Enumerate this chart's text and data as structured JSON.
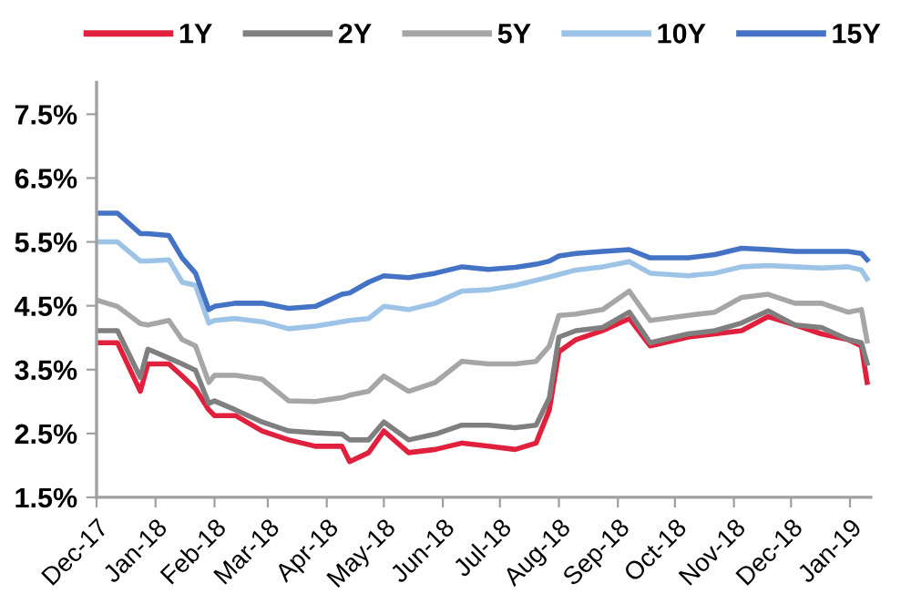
{
  "chart_data": {
    "type": "line",
    "x": [
      "2017-12-01",
      "2017-12-12",
      "2017-12-24",
      "2017-12-28",
      "2018-01-08",
      "2018-01-15",
      "2018-01-22",
      "2018-01-29",
      "2018-02-01",
      "2018-02-12",
      "2018-02-26",
      "2018-03-12",
      "2018-03-26",
      "2018-04-09",
      "2018-04-13",
      "2018-04-23",
      "2018-05-01",
      "2018-05-14",
      "2018-05-28",
      "2018-06-11",
      "2018-06-25",
      "2018-07-09",
      "2018-07-20",
      "2018-07-27",
      "2018-08-01",
      "2018-08-10",
      "2018-08-24",
      "2018-09-07",
      "2018-09-18",
      "2018-10-08",
      "2018-10-22",
      "2018-11-05",
      "2018-11-19",
      "2018-12-03",
      "2018-12-17",
      "2018-12-31",
      "2019-01-07",
      "2019-01-10"
    ],
    "series": [
      {
        "name": "1Y",
        "color": "#e0203c",
        "values": [
          3.92,
          3.92,
          3.16,
          3.59,
          3.59,
          3.4,
          3.2,
          2.87,
          2.78,
          2.78,
          2.54,
          2.4,
          2.3,
          2.3,
          2.06,
          2.2,
          2.54,
          2.2,
          2.25,
          2.35,
          2.3,
          2.25,
          2.35,
          2.87,
          3.78,
          3.97,
          4.11,
          4.3,
          3.87,
          4.01,
          4.06,
          4.11,
          4.33,
          4.2,
          4.06,
          3.97,
          3.87,
          3.3
        ]
      },
      {
        "name": "2Y",
        "color": "#7f7f7f",
        "values": [
          4.11,
          4.11,
          3.38,
          3.82,
          3.68,
          3.59,
          3.49,
          2.97,
          3.01,
          2.87,
          2.68,
          2.54,
          2.51,
          2.49,
          2.4,
          2.4,
          2.68,
          2.4,
          2.49,
          2.63,
          2.63,
          2.59,
          2.63,
          3.06,
          4.01,
          4.11,
          4.16,
          4.4,
          3.92,
          4.06,
          4.11,
          4.23,
          4.42,
          4.2,
          4.16,
          3.97,
          3.92,
          3.6
        ]
      },
      {
        "name": "5Y",
        "color": "#a6a6a6",
        "values": [
          4.59,
          4.49,
          4.22,
          4.2,
          4.27,
          3.97,
          3.87,
          3.3,
          3.41,
          3.41,
          3.35,
          3.01,
          3.0,
          3.06,
          3.1,
          3.16,
          3.4,
          3.16,
          3.3,
          3.63,
          3.59,
          3.59,
          3.63,
          3.87,
          4.35,
          4.37,
          4.44,
          4.73,
          4.27,
          4.35,
          4.4,
          4.63,
          4.68,
          4.54,
          4.54,
          4.4,
          4.44,
          3.95
        ]
      },
      {
        "name": "10Y",
        "color": "#9dc3e6",
        "values": [
          5.5,
          5.5,
          5.2,
          5.2,
          5.22,
          4.87,
          4.82,
          4.23,
          4.27,
          4.3,
          4.25,
          4.14,
          4.18,
          4.25,
          4.27,
          4.3,
          4.49,
          4.44,
          4.54,
          4.73,
          4.75,
          4.82,
          4.9,
          4.95,
          4.99,
          5.06,
          5.11,
          5.19,
          5.01,
          4.97,
          5.01,
          5.11,
          5.13,
          5.11,
          5.09,
          5.11,
          5.06,
          4.92
        ]
      },
      {
        "name": "15Y",
        "color": "#4472c4",
        "values": [
          5.95,
          5.95,
          5.63,
          5.63,
          5.6,
          5.25,
          5.01,
          4.44,
          4.49,
          4.54,
          4.54,
          4.46,
          4.49,
          4.68,
          4.7,
          4.87,
          4.97,
          4.94,
          5.01,
          5.11,
          5.07,
          5.1,
          5.15,
          5.2,
          5.28,
          5.32,
          5.35,
          5.38,
          5.25,
          5.25,
          5.3,
          5.4,
          5.38,
          5.35,
          5.35,
          5.35,
          5.32,
          5.22
        ]
      }
    ],
    "xlim": [
      "2017-12-01",
      "2019-01-12"
    ],
    "xticks": [
      {
        "value": "2017-12-01",
        "label": "Dec-17"
      },
      {
        "value": "2018-01-01",
        "label": "Jan-18"
      },
      {
        "value": "2018-02-01",
        "label": "Feb-18"
      },
      {
        "value": "2018-03-01",
        "label": "Mar-18"
      },
      {
        "value": "2018-04-01",
        "label": "Apr-18"
      },
      {
        "value": "2018-05-01",
        "label": "May-18"
      },
      {
        "value": "2018-06-01",
        "label": "Jun-18"
      },
      {
        "value": "2018-07-01",
        "label": "Jul-18"
      },
      {
        "value": "2018-08-01",
        "label": "Aug-18"
      },
      {
        "value": "2018-09-01",
        "label": "Sep-18"
      },
      {
        "value": "2018-10-01",
        "label": "Oct-18"
      },
      {
        "value": "2018-11-01",
        "label": "Nov-18"
      },
      {
        "value": "2018-12-01",
        "label": "Dec-18"
      },
      {
        "value": "2019-01-01",
        "label": "Jan-19"
      }
    ],
    "ylim": [
      1.5,
      8.0
    ],
    "yticks": [
      {
        "value": 1.5,
        "label": "1.5%"
      },
      {
        "value": 2.5,
        "label": "2.5%"
      },
      {
        "value": 3.5,
        "label": "3.5%"
      },
      {
        "value": 4.5,
        "label": "4.5%"
      },
      {
        "value": 5.5,
        "label": "5.5%"
      },
      {
        "value": 6.5,
        "label": "6.5%"
      },
      {
        "value": 7.5,
        "label": "7.5%"
      }
    ],
    "grid": false,
    "legend": "top",
    "line_style": "solid"
  }
}
